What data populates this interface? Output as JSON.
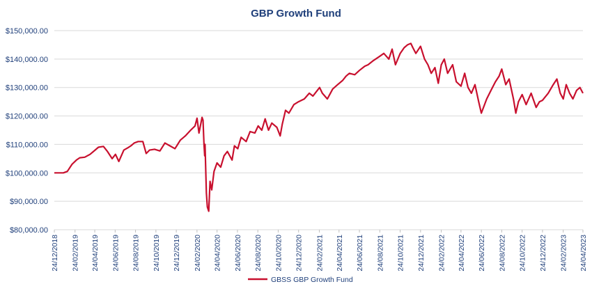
{
  "chart_data": {
    "type": "line",
    "title": "GBP Growth Fund",
    "xlabel": "",
    "ylabel": "",
    "ylim": [
      80000,
      150000
    ],
    "y_ticks": [
      "$80,000.00",
      "$90,000.00",
      "$100,000.00",
      "$110,000.00",
      "$120,000.00",
      "$130,000.00",
      "$140,000.00",
      "$150,000.00"
    ],
    "x_ticks": [
      "24/12/2018",
      "24/02/2019",
      "24/04/2019",
      "24/06/2019",
      "24/08/2019",
      "24/10/2019",
      "24/12/2019",
      "24/02/2020",
      "24/04/2020",
      "24/06/2020",
      "24/08/2020",
      "24/10/2020",
      "24/12/2020",
      "24/02/2021",
      "24/04/2021",
      "24/06/2021",
      "24/08/2021",
      "24/10/2021",
      "24/12/2021",
      "24/02/2022",
      "24/04/2022",
      "24/06/2022",
      "24/08/2022",
      "24/10/2022",
      "24/12/2022",
      "24/02/2023",
      "24/04/2023"
    ],
    "grid": true,
    "legend": "bottom",
    "color": "#c8102e",
    "series": [
      {
        "name": "GBSS GBP Growth Fund",
        "x": [
          "2018-12-24",
          "2019-01-10",
          "2019-01-20",
          "2019-02-01",
          "2019-02-15",
          "2019-02-28",
          "2019-03-10",
          "2019-03-25",
          "2019-04-10",
          "2019-04-25",
          "2019-05-05",
          "2019-05-20",
          "2019-06-01",
          "2019-06-15",
          "2019-06-25",
          "2019-07-05",
          "2019-07-20",
          "2019-08-01",
          "2019-08-10",
          "2019-08-20",
          "2019-09-01",
          "2019-09-15",
          "2019-09-25",
          "2019-10-05",
          "2019-10-20",
          "2019-11-05",
          "2019-11-20",
          "2019-12-05",
          "2019-12-20",
          "2020-01-05",
          "2020-01-20",
          "2020-02-05",
          "2020-02-18",
          "2020-02-24",
          "2020-03-01",
          "2020-03-05",
          "2020-03-10",
          "2020-03-13",
          "2020-03-16",
          "2020-03-18",
          "2020-03-19",
          "2020-03-23",
          "2020-03-26",
          "2020-03-30",
          "2020-04-03",
          "2020-04-08",
          "2020-04-15",
          "2020-04-24",
          "2020-05-05",
          "2020-05-15",
          "2020-05-25",
          "2020-06-08",
          "2020-06-15",
          "2020-06-25",
          "2020-07-05",
          "2020-07-20",
          "2020-08-01",
          "2020-08-15",
          "2020-08-25",
          "2020-09-05",
          "2020-09-15",
          "2020-09-25",
          "2020-10-05",
          "2020-10-20",
          "2020-10-30",
          "2020-11-05",
          "2020-11-15",
          "2020-11-25",
          "2020-12-10",
          "2020-12-24",
          "2021-01-10",
          "2021-01-25",
          "2021-02-05",
          "2021-02-15",
          "2021-02-25",
          "2021-03-05",
          "2021-03-20",
          "2021-04-05",
          "2021-04-20",
          "2021-05-05",
          "2021-05-15",
          "2021-05-25",
          "2021-06-10",
          "2021-06-24",
          "2021-07-10",
          "2021-07-20",
          "2021-08-05",
          "2021-08-24",
          "2021-09-05",
          "2021-09-20",
          "2021-09-30",
          "2021-10-10",
          "2021-10-24",
          "2021-11-05",
          "2021-11-15",
          "2021-11-25",
          "2021-12-01",
          "2021-12-10",
          "2021-12-24",
          "2022-01-05",
          "2022-01-15",
          "2022-01-25",
          "2022-02-05",
          "2022-02-15",
          "2022-02-24",
          "2022-03-05",
          "2022-03-15",
          "2022-03-30",
          "2022-04-10",
          "2022-04-24",
          "2022-05-05",
          "2022-05-15",
          "2022-05-25",
          "2022-06-05",
          "2022-06-16",
          "2022-06-24",
          "2022-07-10",
          "2022-07-25",
          "2022-08-05",
          "2022-08-16",
          "2022-08-24",
          "2022-09-05",
          "2022-09-15",
          "2022-09-28",
          "2022-10-05",
          "2022-10-13",
          "2022-10-24",
          "2022-11-05",
          "2022-11-20",
          "2022-12-05",
          "2022-12-15",
          "2022-12-24",
          "2023-01-10",
          "2023-01-25",
          "2023-02-05",
          "2023-02-15",
          "2023-02-24",
          "2023-03-05",
          "2023-03-15",
          "2023-03-25",
          "2023-04-05",
          "2023-04-15",
          "2023-04-24"
        ],
        "values": [
          100000,
          100000,
          100000,
          100500,
          103000,
          104500,
          105300,
          105500,
          106500,
          108000,
          109000,
          109300,
          107500,
          105000,
          106500,
          104000,
          108000,
          108800,
          109500,
          110500,
          111000,
          111000,
          106800,
          108000,
          108300,
          107700,
          110500,
          109500,
          108500,
          111500,
          113000,
          115000,
          116500,
          119200,
          114000,
          116500,
          119500,
          118500,
          110000,
          106000,
          110000,
          93000,
          88000,
          86500,
          97000,
          94000,
          100500,
          103500,
          102000,
          106000,
          107500,
          104500,
          109500,
          108500,
          112500,
          111000,
          114500,
          114000,
          116500,
          115000,
          119000,
          115000,
          117500,
          116000,
          113000,
          117000,
          122000,
          121000,
          124000,
          125000,
          126000,
          128000,
          127000,
          128500,
          130000,
          128000,
          126000,
          129500,
          131000,
          132500,
          134000,
          135000,
          134500,
          136000,
          137500,
          138000,
          139500,
          141000,
          142000,
          140000,
          143500,
          138000,
          142000,
          144000,
          145000,
          145500,
          144000,
          142000,
          144500,
          140000,
          138000,
          135000,
          137000,
          131500,
          138000,
          140000,
          135000,
          138000,
          132000,
          130500,
          135000,
          130000,
          128000,
          131000,
          125000,
          121000,
          126000,
          129500,
          132000,
          134000,
          136500,
          131000,
          133000,
          126000,
          121000,
          125000,
          127500,
          124000,
          128000,
          123000,
          125000,
          125500,
          128000,
          131000,
          133000,
          128000,
          126000,
          131000,
          128000,
          126000,
          129000,
          130000,
          128000
        ]
      }
    ]
  }
}
